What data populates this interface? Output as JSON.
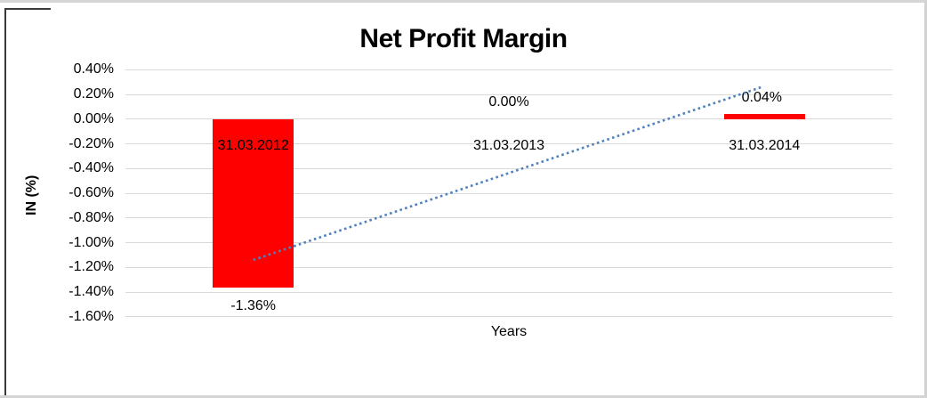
{
  "chart_data": {
    "type": "bar",
    "title": "Net Profit Margin",
    "xlabel": "Years",
    "ylabel": "IN (%)",
    "categories": [
      "31.03.2012",
      "31.03.2013",
      "31.03.2014"
    ],
    "values": [
      -1.36,
      0.0,
      0.04
    ],
    "data_labels": [
      "-1.36%",
      "0.00%",
      "0.04%"
    ],
    "y_ticks": [
      {
        "label": "0.40%",
        "value": 0.4
      },
      {
        "label": "0.20%",
        "value": 0.2
      },
      {
        "label": "0.00%",
        "value": 0.0
      },
      {
        "label": "-0.20%",
        "value": -0.2
      },
      {
        "label": "-0.40%",
        "value": -0.4
      },
      {
        "label": "-0.60%",
        "value": -0.6
      },
      {
        "label": "-0.80%",
        "value": -0.8
      },
      {
        "label": "-1.00%",
        "value": -1.0
      },
      {
        "label": "-1.20%",
        "value": -1.2
      },
      {
        "label": "-1.40%",
        "value": -1.4
      },
      {
        "label": "-1.60%",
        "value": -1.6
      }
    ],
    "ylim": [
      -1.6,
      0.4
    ],
    "grid": true,
    "legend": "none",
    "bar_color": "#ff0000",
    "gridline_color": "#d9d9d9",
    "trendline": {
      "type": "linear",
      "style": "dotted",
      "color": "#4f81bd",
      "from_value": -1.14,
      "to_value": 0.26
    }
  }
}
